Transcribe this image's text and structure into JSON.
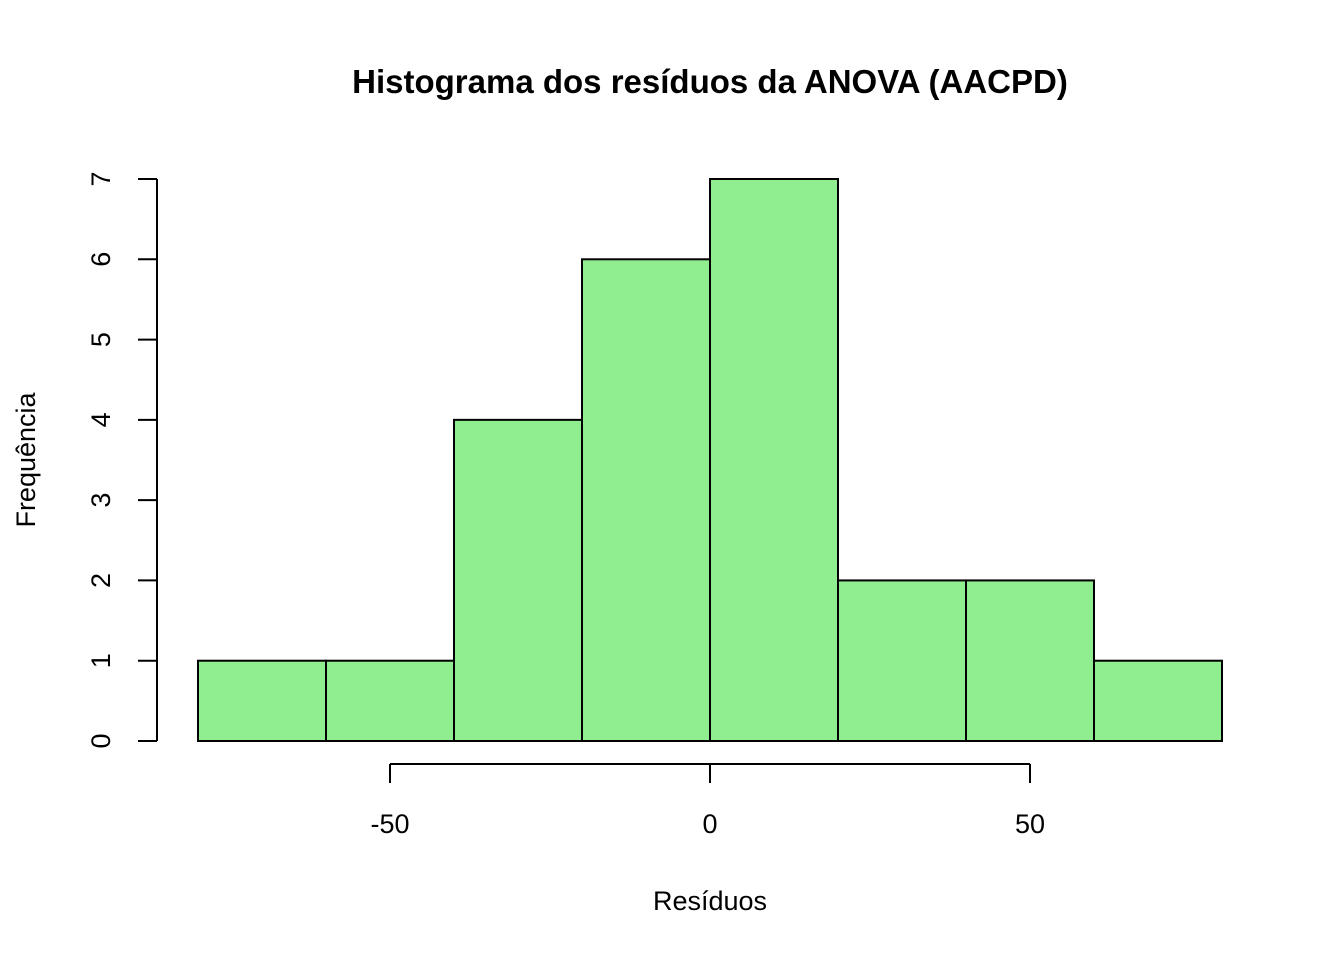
{
  "chart_data": {
    "type": "bar",
    "subtype": "histogram",
    "title": "Histograma dos resíduos da ANOVA (AACPD)",
    "xlabel": "Resíduos",
    "ylabel": "Frequência",
    "bins": [
      {
        "x0": -80,
        "x1": -60,
        "count": 1
      },
      {
        "x0": -60,
        "x1": -40,
        "count": 1
      },
      {
        "x0": -40,
        "x1": -20,
        "count": 4
      },
      {
        "x0": -20,
        "x1": 0,
        "count": 6
      },
      {
        "x0": 0,
        "x1": 20,
        "count": 7
      },
      {
        "x0": 20,
        "x1": 40,
        "count": 2
      },
      {
        "x0": 40,
        "x1": 60,
        "count": 2
      },
      {
        "x0": 60,
        "x1": 80,
        "count": 1
      }
    ],
    "x_ticks": [
      -50,
      0,
      50
    ],
    "x_tick_labels": [
      "-50",
      "0",
      "50"
    ],
    "y_ticks": [
      0,
      1,
      2,
      3,
      4,
      5,
      6,
      7
    ],
    "y_tick_labels": [
      "0",
      "1",
      "2",
      "3",
      "4",
      "5",
      "6",
      "7"
    ],
    "xlim": [
      -80,
      80
    ],
    "ylim": [
      0,
      7
    ],
    "bar_color": "#90EE90",
    "edge_color": "#000000",
    "grid": false,
    "legend": "none"
  }
}
